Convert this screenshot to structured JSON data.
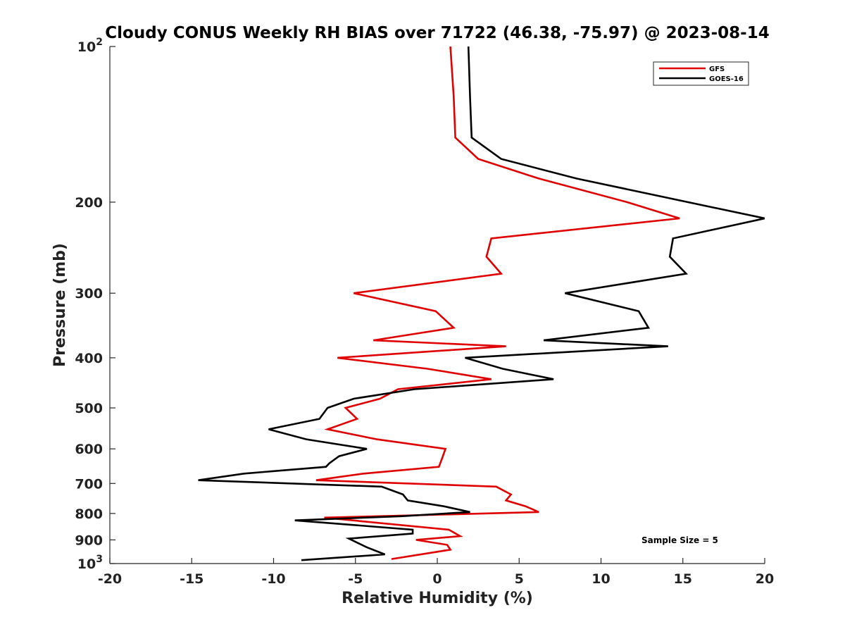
{
  "chart_data": {
    "type": "line",
    "title": "Cloudy CONUS Weekly RH BIAS over 71722 (46.38, -75.97) @ 2023-08-14",
    "xlabel": "Relative Humidity (%)",
    "ylabel": "Pressure (mb)",
    "xlim": [
      -20,
      20
    ],
    "ylim": [
      100,
      1000
    ],
    "yscale": "log",
    "y_reversed": true,
    "x_ticks": [
      -20,
      -15,
      -10,
      -5,
      0,
      5,
      10,
      15,
      20
    ],
    "x_tick_labels": [
      "-20",
      "-15",
      "-10",
      "-5",
      "0",
      "5",
      "10",
      "15",
      "20"
    ],
    "y_ticks": [
      100,
      200,
      300,
      400,
      500,
      600,
      700,
      800,
      900,
      1000
    ],
    "y_tick_labels": [
      {
        "base": "10",
        "exp": "2"
      },
      {
        "base": "200",
        "exp": ""
      },
      {
        "base": "300",
        "exp": ""
      },
      {
        "base": "400",
        "exp": ""
      },
      {
        "base": "500",
        "exp": ""
      },
      {
        "base": "600",
        "exp": ""
      },
      {
        "base": "700",
        "exp": ""
      },
      {
        "base": "800",
        "exp": ""
      },
      {
        "base": "900",
        "exp": ""
      },
      {
        "base": "10",
        "exp": "3"
      }
    ],
    "grid": false,
    "legend_position": "top-right",
    "annotation": "Sample Size = 5",
    "series": [
      {
        "name": "GFS",
        "color": "#e00000",
        "points": [
          [
            0.8,
            100
          ],
          [
            1.0,
            125
          ],
          [
            1.1,
            150
          ],
          [
            2.5,
            165
          ],
          [
            6.2,
            180
          ],
          [
            11.6,
            200
          ],
          [
            14.8,
            215
          ],
          [
            3.3,
            235
          ],
          [
            3.0,
            255
          ],
          [
            3.9,
            275
          ],
          [
            -5.1,
            300
          ],
          [
            -0.1,
            325
          ],
          [
            1.0,
            350
          ],
          [
            -3.9,
            370
          ],
          [
            4.2,
            380
          ],
          [
            -6.1,
            400
          ],
          [
            -0.6,
            420
          ],
          [
            3.3,
            440
          ],
          [
            -2.4,
            460
          ],
          [
            -3.5,
            480
          ],
          [
            -5.6,
            500
          ],
          [
            -4.9,
            525
          ],
          [
            -6.7,
            550
          ],
          [
            -3.7,
            575
          ],
          [
            0.5,
            600
          ],
          [
            0.3,
            625
          ],
          [
            0.1,
            650
          ],
          [
            -4.5,
            670
          ],
          [
            -7.4,
            690
          ],
          [
            3.6,
            710
          ],
          [
            4.5,
            735
          ],
          [
            4.2,
            755
          ],
          [
            5.4,
            775
          ],
          [
            6.2,
            795
          ],
          [
            -6.9,
            815
          ],
          [
            0.7,
            860
          ],
          [
            1.4,
            885
          ],
          [
            -1.3,
            900
          ],
          [
            0.6,
            920
          ],
          [
            0.8,
            940
          ],
          [
            -2.8,
            980
          ]
        ]
      },
      {
        "name": "GOES-16",
        "color": "#000000",
        "points": [
          [
            1.9,
            100
          ],
          [
            2.0,
            125
          ],
          [
            2.1,
            150
          ],
          [
            3.9,
            165
          ],
          [
            8.5,
            180
          ],
          [
            20.0,
            215
          ],
          [
            14.4,
            235
          ],
          [
            14.2,
            255
          ],
          [
            15.2,
            275
          ],
          [
            7.8,
            300
          ],
          [
            12.3,
            325
          ],
          [
            12.9,
            350
          ],
          [
            6.5,
            370
          ],
          [
            14.1,
            380
          ],
          [
            1.7,
            400
          ],
          [
            4.0,
            420
          ],
          [
            7.1,
            440
          ],
          [
            -1.4,
            460
          ],
          [
            -5.1,
            480
          ],
          [
            -6.7,
            500
          ],
          [
            -7.2,
            525
          ],
          [
            -10.3,
            550
          ],
          [
            -8.0,
            575
          ],
          [
            -4.3,
            600
          ],
          [
            -6.0,
            620
          ],
          [
            -6.6,
            640
          ],
          [
            -6.8,
            650
          ],
          [
            -11.8,
            670
          ],
          [
            -14.6,
            690
          ],
          [
            -3.4,
            710
          ],
          [
            -2.1,
            735
          ],
          [
            -1.8,
            755
          ],
          [
            0.4,
            775
          ],
          [
            2.0,
            795
          ],
          [
            -2.2,
            810
          ],
          [
            -8.7,
            825
          ],
          [
            -1.5,
            860
          ],
          [
            -1.5,
            875
          ],
          [
            -5.4,
            895
          ],
          [
            -4.3,
            930
          ],
          [
            -3.2,
            960
          ],
          [
            -8.3,
            985
          ]
        ]
      }
    ]
  }
}
